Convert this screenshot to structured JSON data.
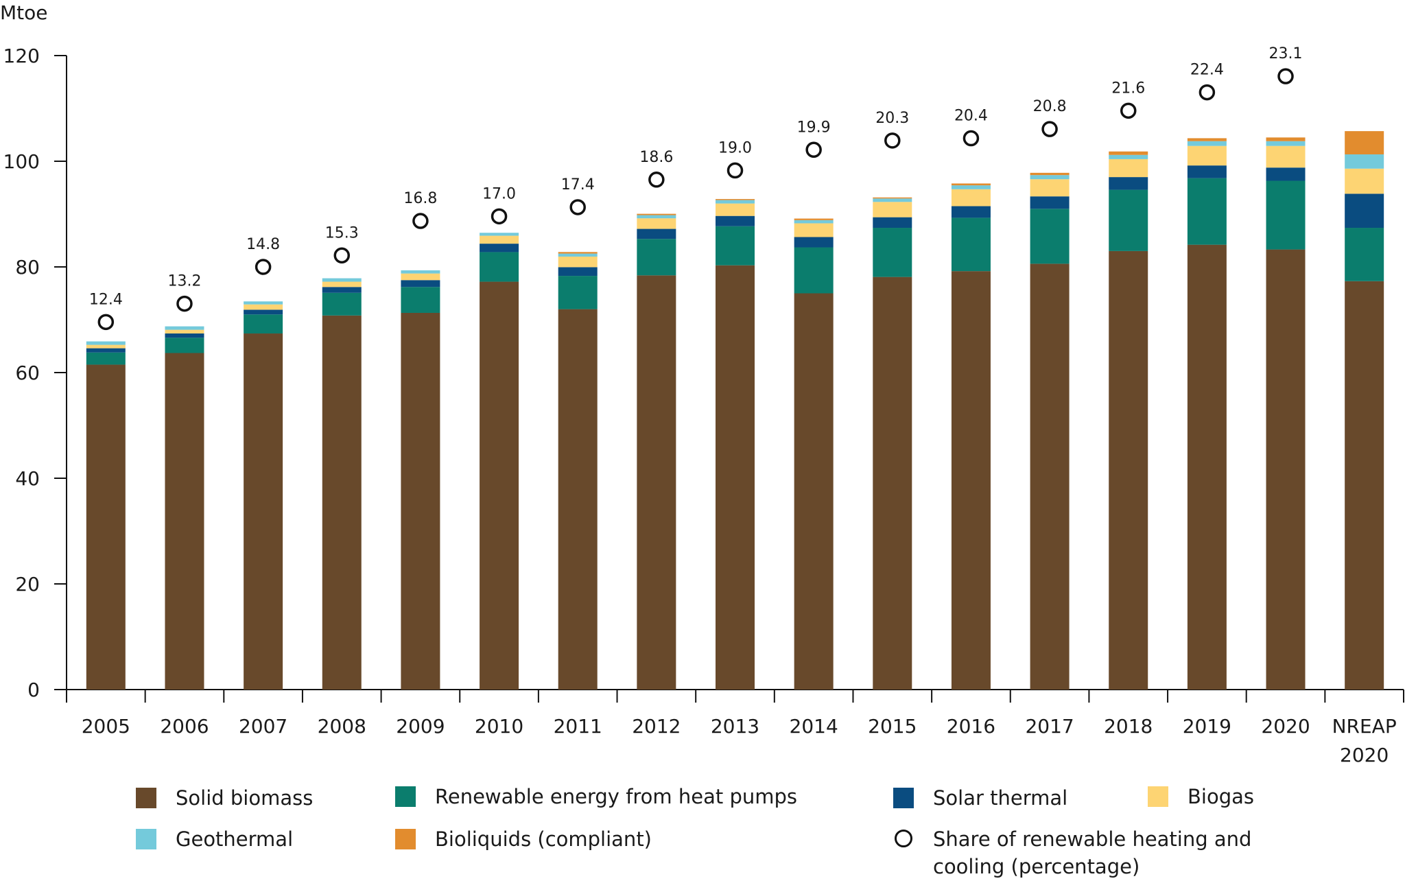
{
  "chart_data": {
    "type": "bar",
    "stacked": true,
    "title": "",
    "ylabel": "Mtoe",
    "xlabel": "",
    "ylim": [
      0,
      120
    ],
    "yticks": [
      0,
      20,
      40,
      60,
      80,
      100,
      120
    ],
    "grid": false,
    "legend_position": "bottom",
    "categories": [
      "2005",
      "2006",
      "2007",
      "2008",
      "2009",
      "2010",
      "2011",
      "2012",
      "2013",
      "2014",
      "2015",
      "2016",
      "2017",
      "2018",
      "2019",
      "2020",
      "NREAP 2020"
    ],
    "category_lines": [
      [
        "2005"
      ],
      [
        "2006"
      ],
      [
        "2007"
      ],
      [
        "2008"
      ],
      [
        "2009"
      ],
      [
        "2010"
      ],
      [
        "2011"
      ],
      [
        "2012"
      ],
      [
        "2013"
      ],
      [
        "2014"
      ],
      [
        "2015"
      ],
      [
        "2016"
      ],
      [
        "2017"
      ],
      [
        "2018"
      ],
      [
        "2019"
      ],
      [
        "2020"
      ],
      [
        "NREAP",
        "2020"
      ]
    ],
    "series": [
      {
        "name": "Solid biomass",
        "color": "#68492b",
        "values": [
          61.5,
          63.7,
          67.4,
          70.8,
          71.3,
          77.2,
          72.0,
          78.4,
          80.3,
          75.0,
          78.1,
          79.2,
          80.6,
          83.0,
          84.2,
          83.3,
          77.3
        ]
      },
      {
        "name": "Renewable energy from heat pumps",
        "color": "#0b7d6d",
        "values": [
          2.3,
          2.9,
          3.6,
          4.3,
          4.9,
          5.6,
          6.3,
          6.9,
          7.4,
          8.7,
          9.3,
          10.1,
          10.4,
          11.6,
          12.6,
          13.0,
          10.1
        ]
      },
      {
        "name": "Solar thermal",
        "color": "#0a4c80",
        "values": [
          0.8,
          0.8,
          0.9,
          1.1,
          1.3,
          1.6,
          1.65,
          1.9,
          1.95,
          1.95,
          2.0,
          2.2,
          2.35,
          2.4,
          2.4,
          2.5,
          6.45
        ]
      },
      {
        "name": "Biogas",
        "color": "#fdd473",
        "values": [
          0.65,
          0.7,
          1.0,
          1.0,
          1.25,
          1.5,
          2.0,
          2.0,
          2.35,
          2.6,
          2.9,
          3.2,
          3.25,
          3.4,
          3.7,
          4.1,
          4.75
        ]
      },
      {
        "name": "Geothermal",
        "color": "#74cadb",
        "values": [
          0.65,
          0.65,
          0.57,
          0.65,
          0.6,
          0.56,
          0.57,
          0.6,
          0.65,
          0.6,
          0.65,
          0.74,
          0.78,
          0.8,
          0.9,
          0.9,
          2.7
        ]
      },
      {
        "name": "Bioliquids (compliant)",
        "color": "#e28c2e",
        "values": [
          0,
          0,
          0,
          0,
          0,
          0,
          0.3,
          0.25,
          0.2,
          0.3,
          0.2,
          0.35,
          0.43,
          0.65,
          0.56,
          0.7,
          4.4
        ]
      }
    ],
    "share_series": {
      "name": "Share of renewable heating and cooling (percentage)",
      "marker": "open-circle",
      "secondary_axis_visible": false,
      "secondary_ylim": [
        -3.6,
        24.0
      ],
      "values": [
        12.4,
        13.2,
        14.8,
        15.3,
        16.8,
        17.0,
        17.4,
        18.6,
        19.0,
        19.9,
        20.3,
        20.4,
        20.8,
        21.6,
        22.4,
        23.1,
        null
      ],
      "labels": [
        "12.4",
        "13.2",
        "14.8",
        "15.3",
        "16.8",
        "17.0",
        "17.4",
        "18.6",
        "19.0",
        "19.9",
        "20.3",
        "20.4",
        "20.8",
        "21.6",
        "22.4",
        "23.1",
        ""
      ]
    }
  },
  "legend": {
    "items": [
      {
        "label": "Solid biomass",
        "color": "#68492b",
        "kind": "swatch"
      },
      {
        "label": "Renewable energy from heat pumps",
        "color": "#0b7d6d",
        "kind": "swatch"
      },
      {
        "label": "Solar thermal",
        "color": "#0a4c80",
        "kind": "swatch"
      },
      {
        "label": "Biogas",
        "color": "#fdd473",
        "kind": "swatch"
      },
      {
        "label": "Geothermal",
        "color": "#74cadb",
        "kind": "swatch"
      },
      {
        "label": "Bioliquids (compliant)",
        "color": "#e28c2e",
        "kind": "swatch"
      },
      {
        "label": "Share of renewable heating and cooling (percentage)",
        "label_lines": [
          "Share of renewable heating and",
          "cooling (percentage)"
        ],
        "kind": "circle"
      }
    ]
  }
}
